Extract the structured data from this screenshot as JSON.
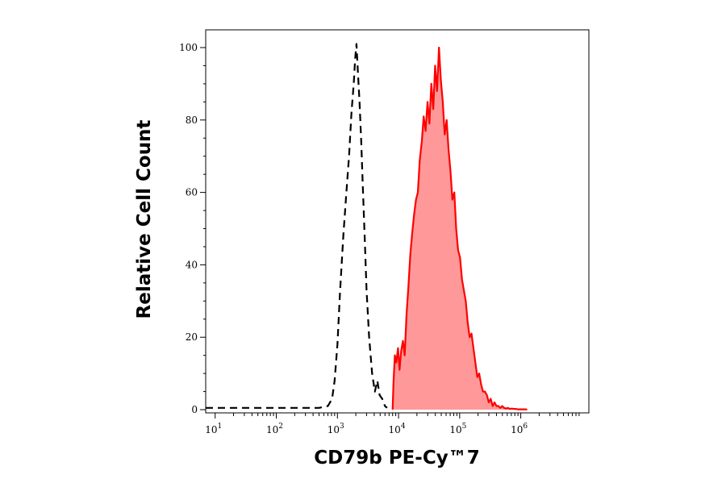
{
  "chart_data": {
    "type": "area",
    "xlabel": "CD79b PE-Cy™7",
    "ylabel": "Relative Cell Count",
    "x_scale": "log",
    "xlim": [
      7,
      13000000
    ],
    "ylim": [
      0,
      100
    ],
    "x_ticks": [
      {
        "value": 10,
        "base": "10",
        "exp": "1"
      },
      {
        "value": 100,
        "base": "10",
        "exp": "2"
      },
      {
        "value": 1000,
        "base": "10",
        "exp": "3"
      },
      {
        "value": 10000,
        "base": "10",
        "exp": "4"
      },
      {
        "value": 100000,
        "base": "10",
        "exp": "5"
      },
      {
        "value": 1000000,
        "base": "10",
        "exp": "6"
      }
    ],
    "y_ticks": [
      {
        "value": 0,
        "label": "0"
      },
      {
        "value": 20,
        "label": "20"
      },
      {
        "value": 40,
        "label": "40"
      },
      {
        "value": 60,
        "label": "60"
      },
      {
        "value": 80,
        "label": "80"
      },
      {
        "value": 100,
        "label": "100"
      }
    ],
    "grid": false,
    "series": [
      {
        "style": "dashed",
        "color": "#000000",
        "filled": false,
        "x": [
          7,
          500,
          700,
          820,
          900,
          1000,
          1100,
          1250,
          1400,
          1550,
          1700,
          1850,
          1950,
          2050,
          2150,
          2300,
          2450,
          2600,
          2800,
          3000,
          3300,
          3700,
          4100,
          4500,
          4900,
          5400,
          6000,
          6500
        ],
        "y": [
          0.5,
          0.5,
          1,
          3,
          8,
          18,
          32,
          48,
          60,
          70,
          82,
          90,
          97,
          101,
          94,
          85,
          74,
          62,
          47,
          33,
          20,
          10,
          5,
          8,
          4,
          3,
          1,
          0.5
        ]
      },
      {
        "style": "solid",
        "color": "#ff0000",
        "fill": "#ff9999",
        "filled": true,
        "x": [
          8000,
          8300,
          8700,
          9200,
          9800,
          10400,
          11000,
          11800,
          12600,
          13500,
          14500,
          15600,
          16800,
          18000,
          19300,
          20700,
          22300,
          24000,
          25800,
          27700,
          29800,
          32000,
          34400,
          37000,
          39700,
          42700,
          45900,
          49300,
          53000,
          57000,
          61200,
          65800,
          70700,
          76000,
          81700,
          87800,
          94400,
          101400,
          109000,
          117200,
          126000,
          135400,
          145500,
          156400,
          168100,
          180700,
          194300,
          208800,
          224400,
          241200,
          259300,
          278700,
          299600,
          322000,
          346100,
          372000,
          399900,
          429800,
          462000,
          496600,
          533800,
          573800,
          616800,
          663000,
          712700,
          766000,
          823400,
          885100,
          951400,
          1022600,
          1099200,
          1181500,
          1270000
        ],
        "y": [
          0,
          8,
          15,
          13,
          17,
          11,
          16,
          19,
          15,
          26,
          34,
          43,
          49,
          54,
          58,
          60,
          69,
          74,
          81,
          77,
          85,
          79,
          90,
          83,
          95,
          88,
          100,
          91,
          85,
          76,
          80,
          72,
          66,
          58,
          60,
          50,
          44,
          42,
          36,
          33,
          30,
          24,
          20,
          21,
          17,
          13,
          9,
          10,
          7,
          5,
          5,
          4,
          2,
          3,
          1,
          2,
          1,
          1,
          0.5,
          1,
          0.5,
          0.3,
          0.5,
          0.2,
          0.3,
          0.2,
          0.2,
          0.1,
          0.1,
          0.1,
          0.1,
          0.1,
          0
        ]
      }
    ]
  }
}
